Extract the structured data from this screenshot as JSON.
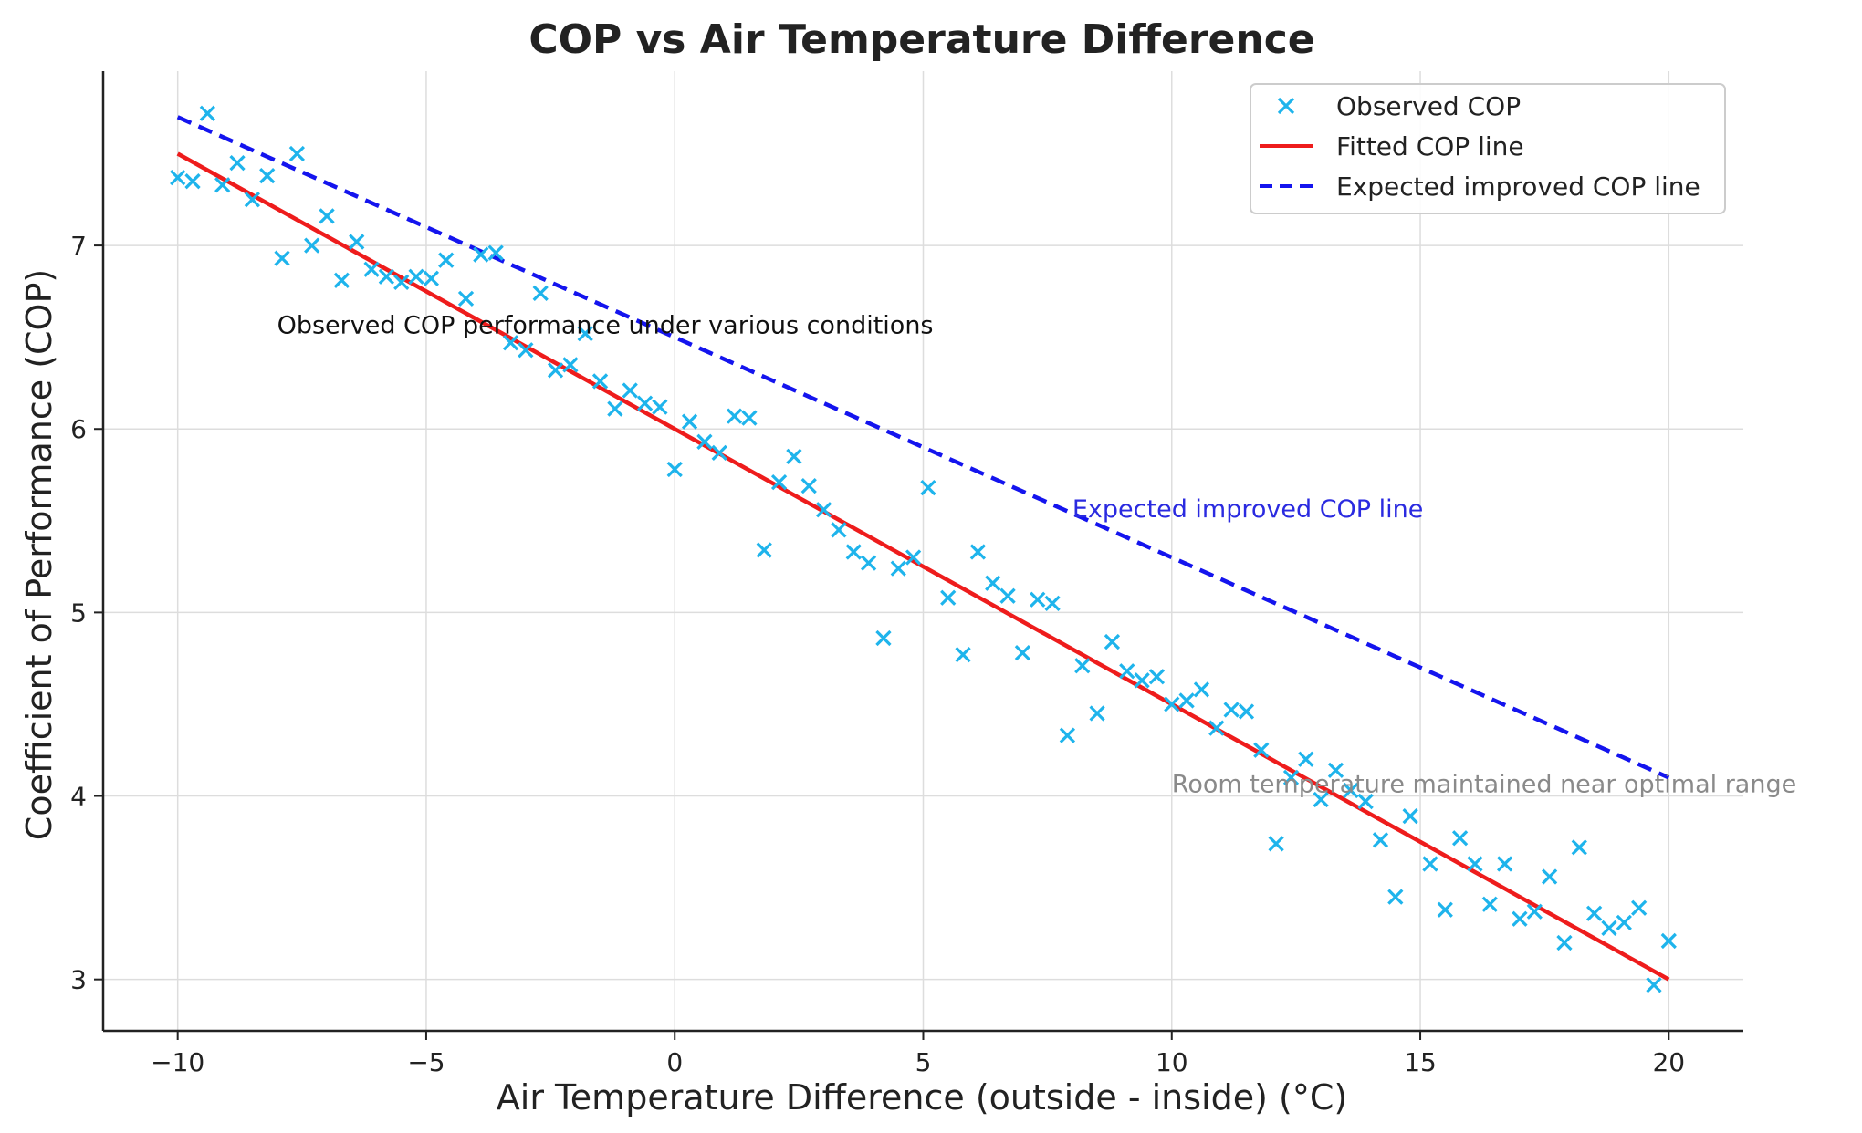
{
  "chart_data": {
    "type": "scatter",
    "title": "COP vs Air Temperature Difference",
    "xlabel": "Air Temperature Difference (outside - inside) (°C)",
    "ylabel": "Coefficient of Performance (COP)",
    "xlim": [
      -11.5,
      21.5
    ],
    "ylim": [
      2.72,
      7.95
    ],
    "xticks": [
      -10,
      -5,
      0,
      5,
      10,
      15,
      20
    ],
    "xtick_labels": [
      "−10",
      "−5",
      "0",
      "5",
      "10",
      "15",
      "20"
    ],
    "yticks": [
      3,
      4,
      5,
      6,
      7
    ],
    "ytick_labels": [
      "3",
      "4",
      "5",
      "6",
      "7"
    ],
    "grid": true,
    "legend_position": "top-right",
    "series": [
      {
        "name": "Observed COP",
        "kind": "scatter",
        "marker": "x",
        "color": "#1eb4ec",
        "x": [
          -10.0,
          -9.7,
          -9.4,
          -9.1,
          -8.8,
          -8.5,
          -8.2,
          -7.9,
          -7.6,
          -7.3,
          -7.0,
          -6.7,
          -6.4,
          -6.1,
          -5.8,
          -5.5,
          -5.2,
          -4.9,
          -4.6,
          -4.2,
          -3.9,
          -3.6,
          -3.3,
          -3.0,
          -2.7,
          -2.4,
          -2.1,
          -1.8,
          -1.5,
          -1.2,
          -0.9,
          -0.6,
          -0.3,
          0.0,
          0.3,
          0.6,
          0.9,
          1.2,
          1.5,
          1.8,
          2.1,
          2.4,
          2.7,
          3.0,
          3.3,
          3.6,
          3.9,
          4.2,
          4.5,
          4.8,
          5.1,
          5.5,
          5.8,
          6.1,
          6.4,
          6.7,
          7.0,
          7.3,
          7.6,
          7.9,
          8.2,
          8.5,
          8.8,
          9.1,
          9.4,
          9.7,
          10.0,
          10.3,
          10.6,
          10.9,
          11.2,
          11.5,
          11.8,
          12.1,
          12.4,
          12.7,
          13.0,
          13.3,
          13.6,
          13.9,
          14.2,
          14.5,
          14.8,
          15.2,
          15.5,
          15.8,
          16.1,
          16.4,
          16.7,
          17.0,
          17.3,
          17.6,
          17.9,
          18.2,
          18.5,
          18.8,
          19.1,
          19.4,
          19.7,
          20.0
        ],
        "y": [
          7.37,
          7.35,
          7.72,
          7.33,
          7.45,
          7.25,
          7.38,
          6.93,
          7.5,
          7.0,
          7.16,
          6.81,
          7.02,
          6.87,
          6.83,
          6.8,
          6.83,
          6.82,
          6.92,
          6.71,
          6.95,
          6.96,
          6.47,
          6.43,
          6.74,
          6.32,
          6.35,
          6.52,
          6.26,
          6.11,
          6.21,
          6.14,
          6.12,
          5.78,
          6.04,
          5.93,
          5.87,
          6.07,
          6.06,
          5.34,
          5.71,
          5.85,
          5.69,
          5.56,
          5.45,
          5.33,
          5.27,
          4.86,
          5.24,
          5.3,
          5.68,
          5.08,
          4.77,
          5.33,
          5.16,
          5.09,
          4.78,
          5.07,
          5.05,
          4.33,
          4.71,
          4.45,
          4.84,
          4.68,
          4.63,
          4.65,
          4.5,
          4.52,
          4.58,
          4.37,
          4.47,
          4.46,
          4.25,
          3.74,
          4.1,
          4.2,
          3.98,
          4.14,
          4.03,
          3.97,
          3.76,
          3.45,
          3.89,
          3.63,
          3.38,
          3.77,
          3.63,
          3.41,
          3.63,
          3.33,
          3.37,
          3.56,
          3.2,
          3.72,
          3.36,
          3.28,
          3.31,
          3.39,
          2.97,
          3.21
        ]
      },
      {
        "name": "Fitted COP line",
        "kind": "line",
        "style": "solid",
        "color": "#ee1c1c",
        "x": [
          -10,
          20
        ],
        "y": [
          7.5,
          3.0
        ]
      },
      {
        "name": "Expected improved COP line",
        "kind": "line",
        "style": "dashed",
        "color": "#1414ee",
        "x": [
          -10,
          20
        ],
        "y": [
          7.7,
          4.1
        ]
      }
    ],
    "annotations": [
      {
        "text": "Observed COP performance under various conditions",
        "x": -8.0,
        "y": 6.52,
        "color": "#111111"
      },
      {
        "text": "Expected improved COP line",
        "x": 8.0,
        "y": 5.52,
        "color": "#2a2ae0"
      },
      {
        "text": "Room temperature maintained near optimal range",
        "x": 10.0,
        "y": 4.02,
        "color": "#8a8a8a"
      }
    ]
  }
}
